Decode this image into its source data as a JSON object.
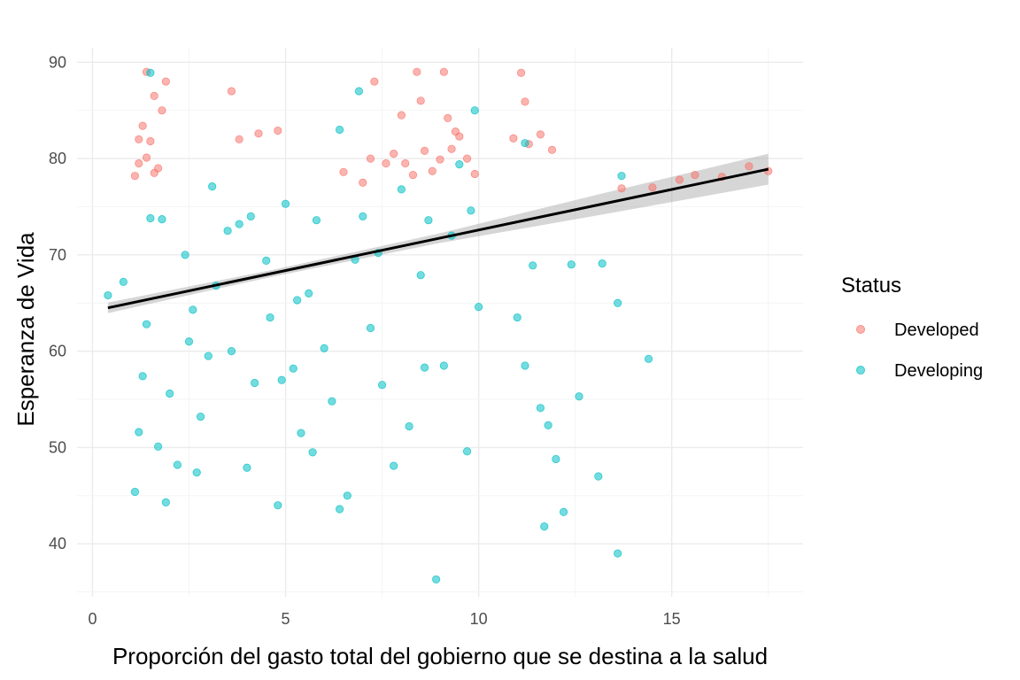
{
  "chart_data": {
    "type": "scatter",
    "title": "",
    "xlabel": "Proporción del gasto total del gobierno que se destina a la salud",
    "ylabel": "Esperanza de Vida",
    "xlim": [
      -0.4,
      18.4
    ],
    "ylim": [
      34.5,
      91.5
    ],
    "x_ticks": [
      0,
      5,
      10,
      15
    ],
    "y_ticks": [
      40,
      50,
      60,
      70,
      80,
      90
    ],
    "x_tick_labels": [
      "0",
      "5",
      "10",
      "15"
    ],
    "y_tick_labels": [
      "40",
      "50",
      "60",
      "70",
      "80",
      "90"
    ],
    "grid": true,
    "legend": {
      "title": "Status",
      "position": "right"
    },
    "series": [
      {
        "name": "Developed",
        "color": "#F8766D",
        "points": [
          [
            1.1,
            78.2
          ],
          [
            1.2,
            79.5
          ],
          [
            1.3,
            83.4
          ],
          [
            1.4,
            80.1
          ],
          [
            1.5,
            81.8
          ],
          [
            1.6,
            86.5
          ],
          [
            1.4,
            89.0
          ],
          [
            1.7,
            79.0
          ],
          [
            1.8,
            85.0
          ],
          [
            1.9,
            88.0
          ],
          [
            1.2,
            82.0
          ],
          [
            1.6,
            78.5
          ],
          [
            3.6,
            87.0
          ],
          [
            4.3,
            82.6
          ],
          [
            4.8,
            82.9
          ],
          [
            3.8,
            82.0
          ],
          [
            7.3,
            88.0
          ],
          [
            7.8,
            80.5
          ],
          [
            8.1,
            79.5
          ],
          [
            8.4,
            89.0
          ],
          [
            8.6,
            80.8
          ],
          [
            8.8,
            78.7
          ],
          [
            9.1,
            89.0
          ],
          [
            9.3,
            81.0
          ],
          [
            9.5,
            82.3
          ],
          [
            9.7,
            80.0
          ],
          [
            9.9,
            78.4
          ],
          [
            8.0,
            84.5
          ],
          [
            8.5,
            86.0
          ],
          [
            9.0,
            79.9
          ],
          [
            7.6,
            79.5
          ],
          [
            7.2,
            80.0
          ],
          [
            11.1,
            88.9
          ],
          [
            11.3,
            81.5
          ],
          [
            11.6,
            82.5
          ],
          [
            11.9,
            80.9
          ],
          [
            10.9,
            82.1
          ],
          [
            11.2,
            85.9
          ],
          [
            13.7,
            76.9
          ],
          [
            14.5,
            77.0
          ],
          [
            15.2,
            77.8
          ],
          [
            15.6,
            78.3
          ],
          [
            16.3,
            78.1
          ],
          [
            17.0,
            79.2
          ],
          [
            17.5,
            78.7
          ],
          [
            9.4,
            82.8
          ],
          [
            9.2,
            84.2
          ],
          [
            8.3,
            78.3
          ],
          [
            7.0,
            77.5
          ],
          [
            6.5,
            78.6
          ]
        ]
      },
      {
        "name": "Developing",
        "color": "#00BFC4",
        "points": [
          [
            0.4,
            65.8
          ],
          [
            0.8,
            67.2
          ],
          [
            1.1,
            45.4
          ],
          [
            1.2,
            51.6
          ],
          [
            1.3,
            57.4
          ],
          [
            1.4,
            62.8
          ],
          [
            1.5,
            73.8
          ],
          [
            1.7,
            50.1
          ],
          [
            1.9,
            44.3
          ],
          [
            1.5,
            88.9
          ],
          [
            2.0,
            55.6
          ],
          [
            2.2,
            48.2
          ],
          [
            2.5,
            61.0
          ],
          [
            2.8,
            53.2
          ],
          [
            3.0,
            59.5
          ],
          [
            3.2,
            66.8
          ],
          [
            3.5,
            72.5
          ],
          [
            3.8,
            73.2
          ],
          [
            4.0,
            47.9
          ],
          [
            4.2,
            56.7
          ],
          [
            4.5,
            69.4
          ],
          [
            4.6,
            63.5
          ],
          [
            4.8,
            44.0
          ],
          [
            5.0,
            75.3
          ],
          [
            5.2,
            58.2
          ],
          [
            5.4,
            51.5
          ],
          [
            5.6,
            66.0
          ],
          [
            5.8,
            73.6
          ],
          [
            6.0,
            60.3
          ],
          [
            6.2,
            54.8
          ],
          [
            6.4,
            43.6
          ],
          [
            6.6,
            45.0
          ],
          [
            6.8,
            69.5
          ],
          [
            7.0,
            74.0
          ],
          [
            7.2,
            62.4
          ],
          [
            7.5,
            56.5
          ],
          [
            7.8,
            48.1
          ],
          [
            8.0,
            76.8
          ],
          [
            8.2,
            52.2
          ],
          [
            8.5,
            67.9
          ],
          [
            8.7,
            73.6
          ],
          [
            8.9,
            36.3
          ],
          [
            9.1,
            58.5
          ],
          [
            9.3,
            72.0
          ],
          [
            9.5,
            79.4
          ],
          [
            9.7,
            49.6
          ],
          [
            9.9,
            85.0
          ],
          [
            10.0,
            64.6
          ],
          [
            11.0,
            63.5
          ],
          [
            11.2,
            58.5
          ],
          [
            11.4,
            68.9
          ],
          [
            11.6,
            54.1
          ],
          [
            11.8,
            52.3
          ],
          [
            12.0,
            48.8
          ],
          [
            11.7,
            41.8
          ],
          [
            12.2,
            43.3
          ],
          [
            12.6,
            55.3
          ],
          [
            13.1,
            47.0
          ],
          [
            13.2,
            69.1
          ],
          [
            13.6,
            65.0
          ],
          [
            13.7,
            78.2
          ],
          [
            13.6,
            39.0
          ],
          [
            14.4,
            59.2
          ],
          [
            12.4,
            69.0
          ],
          [
            11.2,
            81.6
          ],
          [
            6.4,
            83.0
          ],
          [
            4.1,
            74.0
          ],
          [
            3.1,
            77.1
          ],
          [
            2.4,
            70.0
          ],
          [
            2.7,
            47.4
          ],
          [
            4.9,
            57.0
          ],
          [
            5.3,
            65.3
          ],
          [
            7.4,
            70.2
          ],
          [
            6.9,
            87.0
          ],
          [
            9.8,
            74.6
          ],
          [
            8.6,
            58.3
          ],
          [
            3.6,
            60.0
          ],
          [
            1.8,
            73.7
          ],
          [
            2.6,
            64.3
          ],
          [
            5.7,
            49.5
          ]
        ]
      }
    ],
    "trend": {
      "method": "linear",
      "color": "#000000",
      "x": [
        0.4,
        17.5
      ],
      "y": [
        64.5,
        78.9
      ],
      "ci_halfwidth": [
        0.55,
        0.35,
        0.5,
        1.1,
        1.6
      ]
    }
  }
}
